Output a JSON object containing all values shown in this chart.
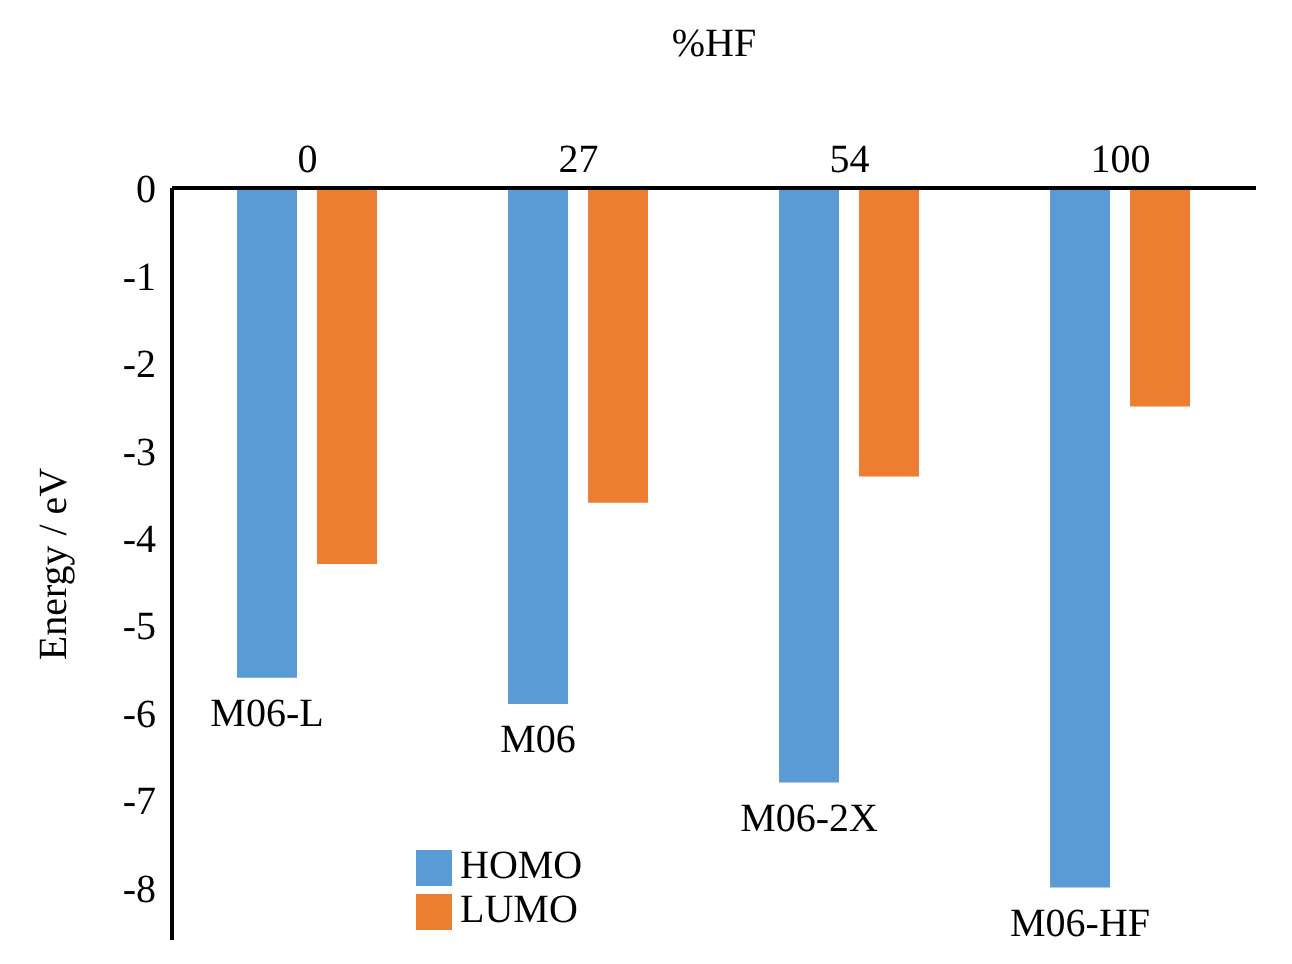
{
  "chart_data": {
    "type": "bar",
    "x2label": "%HF",
    "ylabel": "Energy / eV",
    "categories": [
      "0",
      "27",
      "54",
      "100"
    ],
    "series": [
      {
        "name": "HOMO",
        "color": "#5b9bd5",
        "values": [
          -5.6,
          -5.9,
          -6.8,
          -8.0
        ]
      },
      {
        "name": "LUMO",
        "color": "#ed7d31",
        "values": [
          -4.3,
          -3.6,
          -3.3,
          -2.5
        ]
      }
    ],
    "ylim": [
      -8.6,
      0
    ],
    "yticks": [
      0,
      -1,
      -2,
      -3,
      -4,
      -5,
      -6,
      -7,
      -8
    ],
    "grid": false,
    "legend": "bottom left",
    "annotations": [
      "M06-L",
      "M06",
      "M06-2X",
      "M06-HF"
    ]
  }
}
